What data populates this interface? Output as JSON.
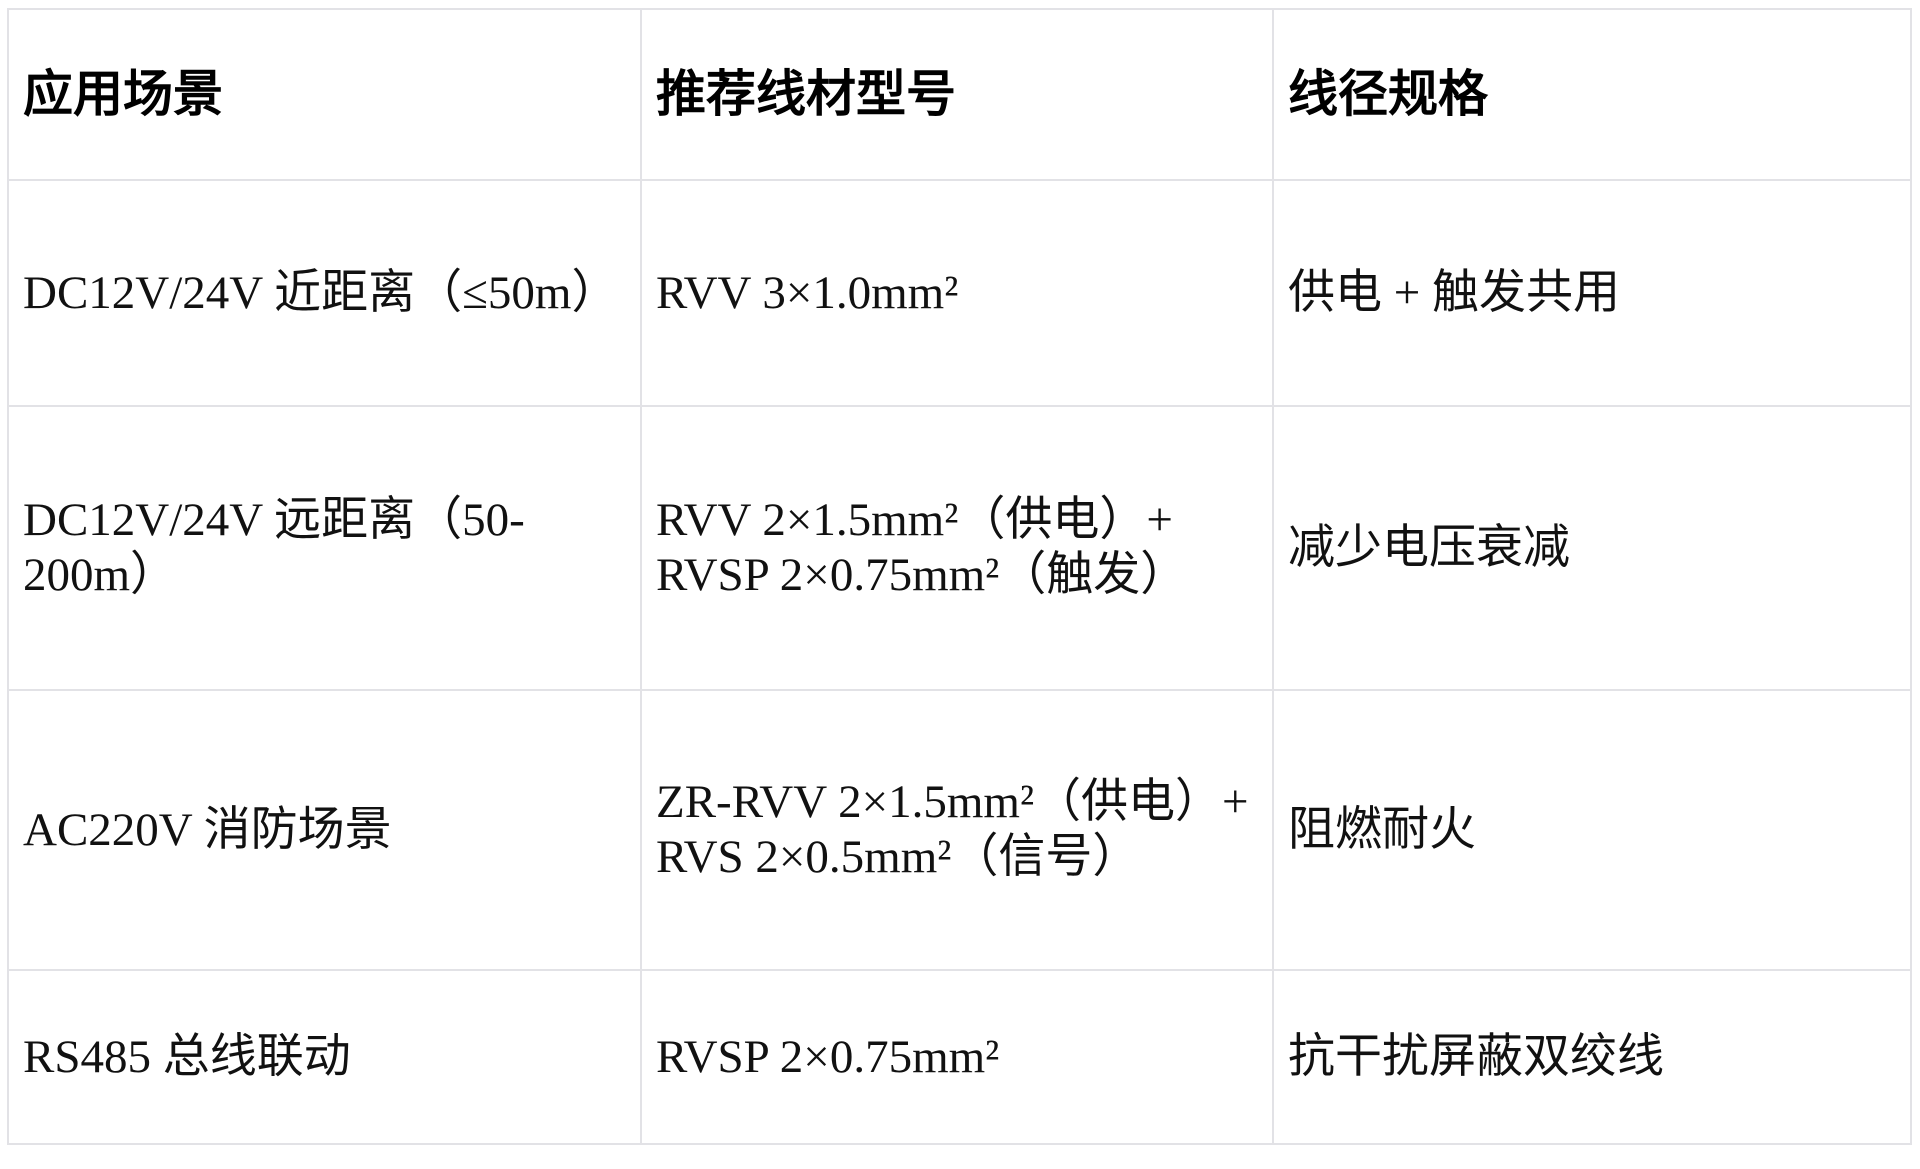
{
  "table": {
    "columns": [
      {
        "label": "应用场景"
      },
      {
        "label": "推荐线材型号"
      },
      {
        "label": "线径规格"
      }
    ],
    "rows": [
      {
        "scene": "DC12V/24V 近距离（≤50m）",
        "model": "RVV 3×1.0mm²",
        "spec": "供电 + 触发共用"
      },
      {
        "scene": "DC12V/24V 远距离（50-200m）",
        "model": "RVV 2×1.5mm²（供电）+ RVSP 2×0.75mm²（触发）",
        "spec": "减少电压衰减"
      },
      {
        "scene": "AC220V 消防场景",
        "model": "ZR-RVV 2×1.5mm²（供电）+ RVS 2×0.5mm²（信号）",
        "spec": "阻燃耐火"
      },
      {
        "scene": "RS485 总线联动",
        "model": "RVSP 2×0.75mm²",
        "spec": "抗干扰屏蔽双绞线"
      }
    ]
  }
}
